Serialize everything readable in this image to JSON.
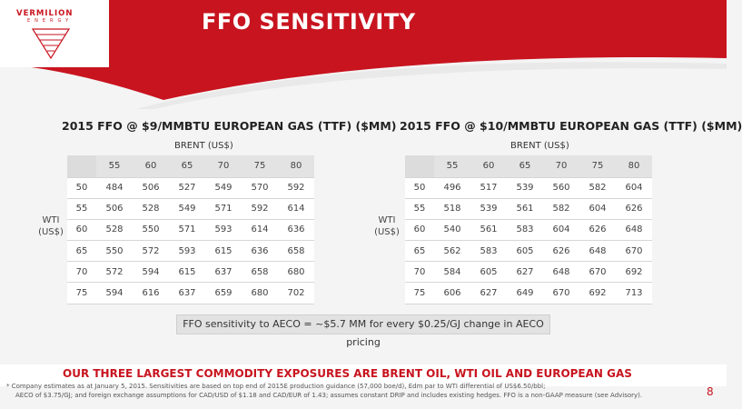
{
  "brand": {
    "name": "VERMILION",
    "sub": "ENERGY",
    "color": "#c8141f"
  },
  "title": "FFO SENSITIVITY",
  "tables": [
    {
      "title": "2015 FFO @ $9/MMBTU EUROPEAN GAS (TTF) ($MM)",
      "brent_label": "BRENT (US$)",
      "wti_label_1": "WTI",
      "wti_label_2": "(US$)",
      "brent": [
        "55",
        "60",
        "65",
        "70",
        "75",
        "80"
      ],
      "rows": [
        {
          "wti": "50",
          "values": [
            "484",
            "506",
            "527",
            "549",
            "570",
            "592"
          ]
        },
        {
          "wti": "55",
          "values": [
            "506",
            "528",
            "549",
            "571",
            "592",
            "614"
          ]
        },
        {
          "wti": "60",
          "values": [
            "528",
            "550",
            "571",
            "593",
            "614",
            "636"
          ]
        },
        {
          "wti": "65",
          "values": [
            "550",
            "572",
            "593",
            "615",
            "636",
            "658"
          ]
        },
        {
          "wti": "70",
          "values": [
            "572",
            "594",
            "615",
            "637",
            "658",
            "680"
          ]
        },
        {
          "wti": "75",
          "values": [
            "594",
            "616",
            "637",
            "659",
            "680",
            "702"
          ]
        }
      ]
    },
    {
      "title": "2015 FFO @ $10/MMBTU EUROPEAN GAS (TTF) ($MM)",
      "brent_label": "BRENT (US$)",
      "wti_label_1": "WTI",
      "wti_label_2": "(US$)",
      "brent": [
        "55",
        "60",
        "65",
        "70",
        "75",
        "80"
      ],
      "rows": [
        {
          "wti": "50",
          "values": [
            "496",
            "517",
            "539",
            "560",
            "582",
            "604"
          ]
        },
        {
          "wti": "55",
          "values": [
            "518",
            "539",
            "561",
            "582",
            "604",
            "626"
          ]
        },
        {
          "wti": "60",
          "values": [
            "540",
            "561",
            "583",
            "604",
            "626",
            "648"
          ]
        },
        {
          "wti": "65",
          "values": [
            "562",
            "583",
            "605",
            "626",
            "648",
            "670"
          ]
        },
        {
          "wti": "70",
          "values": [
            "584",
            "605",
            "627",
            "648",
            "670",
            "692"
          ]
        },
        {
          "wti": "75",
          "values": [
            "606",
            "627",
            "649",
            "670",
            "692",
            "713"
          ]
        }
      ]
    }
  ],
  "note": "FFO sensitivity to AECO = ~$5.7 MM for every $0.25/GJ change in AECO pricing",
  "tagline": "OUR THREE LARGEST COMMODITY EXPOSURES ARE BRENT OIL, WTI OIL AND EUROPEAN GAS",
  "footnote_line1": "* Company estimates as at January 5, 2015. Sensitivities are based on top end of 2015E production guidance (57,000 boe/d), Edm par to WTI differential of US$6.50/bbl;",
  "footnote_line2": "AECO of $3.75/GJ; and foreign exchange assumptions for CAD/USD of $1.18 and CAD/EUR of 1.43; assumes constant DRIP and includes existing hedges. FFO is a non-GAAP measure (see Advisory).",
  "page_number": "8"
}
